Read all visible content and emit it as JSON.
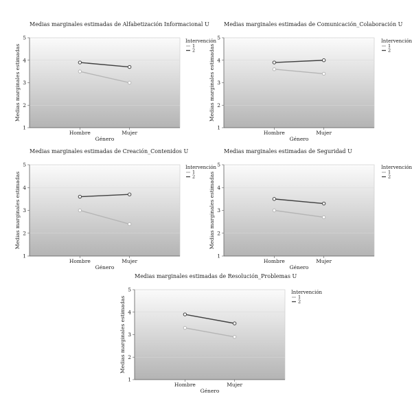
{
  "chart_data": [
    {
      "type": "line",
      "title": "Medias marginales estimadas de Alfabetización Informacional U",
      "xlabel": "Género",
      "ylabel": "Medias marginales estimadas",
      "categories": [
        "Hombre",
        "Mujer"
      ],
      "ylim": [
        1,
        5
      ],
      "yticks": [
        "1",
        "2",
        "3",
        "4",
        "5"
      ],
      "legend": {
        "title": "Intervención",
        "position": "right"
      },
      "series": [
        {
          "name": "1",
          "values": [
            3.5,
            3.0
          ],
          "color": "#b5b5b5"
        },
        {
          "name": "2",
          "values": [
            3.9,
            3.7
          ],
          "color": "#404040"
        }
      ]
    },
    {
      "type": "line",
      "title": "Medias marginales estimadas de Comunicación_Colaboración U",
      "xlabel": "Género",
      "ylabel": "Medias marginales estimadas",
      "categories": [
        "Hombre",
        "Mujer"
      ],
      "ylim": [
        1,
        5
      ],
      "yticks": [
        "1",
        "2",
        "3",
        "4",
        "5"
      ],
      "legend": {
        "title": "Intervención",
        "position": "right"
      },
      "series": [
        {
          "name": "1",
          "values": [
            3.6,
            3.4
          ],
          "color": "#b5b5b5"
        },
        {
          "name": "2",
          "values": [
            3.9,
            4.0
          ],
          "color": "#404040"
        }
      ]
    },
    {
      "type": "line",
      "title": "Medias marginales estimadas de Creación_Contenidos U",
      "xlabel": "Género",
      "ylabel": "Medias marginales estimadas",
      "categories": [
        "Hombre",
        "Mujer"
      ],
      "ylim": [
        1,
        5
      ],
      "yticks": [
        "1",
        "2",
        "3",
        "4",
        "5"
      ],
      "legend": {
        "title": "Intervención",
        "position": "right"
      },
      "series": [
        {
          "name": "1",
          "values": [
            3.0,
            2.4
          ],
          "color": "#b5b5b5"
        },
        {
          "name": "2",
          "values": [
            3.6,
            3.7
          ],
          "color": "#404040"
        }
      ]
    },
    {
      "type": "line",
      "title": "Medias marginales estimadas de Seguridad U",
      "xlabel": "Género",
      "ylabel": "Medias marginales estimadas",
      "categories": [
        "Hombre",
        "Mujer"
      ],
      "ylim": [
        1,
        5
      ],
      "yticks": [
        "1",
        "2",
        "3",
        "4",
        "5"
      ],
      "legend": {
        "title": "Intervención",
        "position": "right"
      },
      "series": [
        {
          "name": "1",
          "values": [
            3.0,
            2.7
          ],
          "color": "#b5b5b5"
        },
        {
          "name": "2",
          "values": [
            3.5,
            3.3
          ],
          "color": "#404040"
        }
      ]
    },
    {
      "type": "line",
      "title": "Medias marginales estimadas de Resolución_Problemas U",
      "xlabel": "Género",
      "ylabel": "Medias marginales estimadas",
      "categories": [
        "Hombre",
        "Mujer"
      ],
      "ylim": [
        1,
        5
      ],
      "yticks": [
        "1",
        "2",
        "3",
        "4",
        "5"
      ],
      "legend": {
        "title": "Intervención",
        "position": "right"
      },
      "series": [
        {
          "name": "1",
          "values": [
            3.3,
            2.9
          ],
          "color": "#b5b5b5"
        },
        {
          "name": "2",
          "values": [
            3.9,
            3.5
          ],
          "color": "#404040"
        }
      ]
    }
  ]
}
